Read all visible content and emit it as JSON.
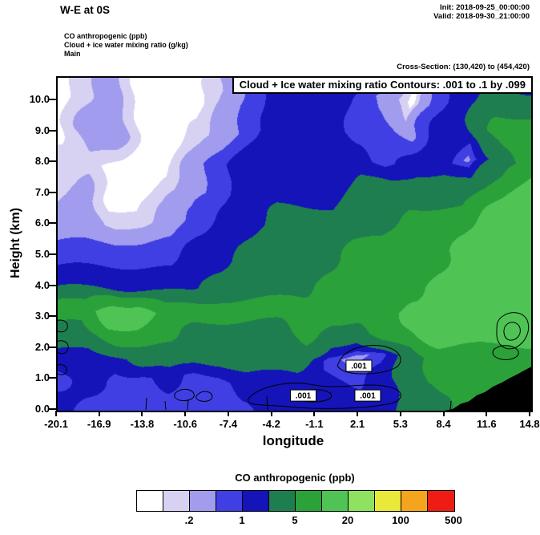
{
  "header": {
    "title": "W-E at 0S",
    "init_label": "Init: 2018-09-25_00:00:00",
    "valid_label": "Valid: 2018-09-30_21:00:00",
    "field_lines": [
      "CO anthropogenic   (ppb)",
      "Cloud + ice water mixing ratio   (g/kg)",
      "Main"
    ],
    "cross_section": "Cross-Section: (130,420) to (454,420)"
  },
  "chart_data": {
    "type": "heatmap",
    "title": "Cloud + Ice water mixing ratio Contours: .001 to .1 by .099",
    "xlabel": "longitude",
    "ylabel": "Height (km)",
    "xlim": [
      -20.1,
      14.8
    ],
    "ylim": [
      0,
      10.75
    ],
    "x_ticks": [
      "-20.1",
      "-16.9",
      "-13.8",
      "-10.6",
      "-7.4",
      "-4.2",
      "-1.1",
      "2.1",
      "5.3",
      "8.4",
      "11.6",
      "14.8"
    ],
    "y_ticks": [
      "0.0",
      "1.0",
      "2.0",
      "3.0",
      "4.0",
      "5.0",
      "6.0",
      "7.0",
      "8.0",
      "9.0",
      "10.0"
    ],
    "levels": [
      0.1,
      0.2,
      0.5,
      1,
      2,
      5,
      10,
      20,
      50,
      100,
      200
    ],
    "colors": [
      "#ffffff",
      "#d8d2f2",
      "#a19cee",
      "#3f3fe3",
      "#1414b8",
      "#1f7e50",
      "#2ba13a",
      "#4fc455",
      "#8fe25f",
      "#e9e93a",
      "#f5a51d",
      "#ee1c12"
    ],
    "fill_field": {
      "name": "CO anthropogenic",
      "units": "ppb",
      "lons": [
        -20.1,
        -18,
        -16,
        -14,
        -12,
        -10,
        -8,
        -6,
        -4,
        -2,
        0,
        2,
        4,
        6,
        8,
        10,
        12.4,
        14.8
      ],
      "heights_km": [
        0,
        1,
        1.8,
        2.5,
        3.2,
        4,
        5,
        6,
        7,
        8,
        9,
        10,
        10.8
      ],
      "values_ppb": [
        [
          1.5,
          0.7,
          0.7,
          0.7,
          0.7,
          0.7,
          0.7,
          0.7,
          1.5,
          1.5,
          1.5,
          1.5,
          1.5,
          3,
          3,
          7,
          7,
          7
        ],
        [
          0.7,
          1.5,
          0.7,
          0.7,
          1.5,
          0.7,
          0.7,
          1.5,
          1.5,
          1.5,
          1.5,
          0.7,
          1.5,
          3,
          7,
          7,
          7,
          7
        ],
        [
          1.5,
          1.5,
          1.5,
          3,
          3,
          3,
          3,
          3,
          3,
          3,
          0.7,
          0.3,
          0.7,
          3,
          7,
          7,
          7,
          7
        ],
        [
          3,
          3,
          7,
          7,
          7,
          3,
          3,
          3,
          3,
          7,
          3,
          3,
          7,
          7,
          15,
          15,
          15,
          15
        ],
        [
          7,
          7,
          15,
          15,
          7,
          7,
          7,
          7,
          7,
          7,
          7,
          7,
          7,
          15,
          15,
          15,
          15,
          15
        ],
        [
          1.5,
          1.5,
          1.5,
          1.5,
          1.5,
          1.5,
          3,
          3,
          3,
          3,
          7,
          7,
          7,
          7,
          15,
          15,
          15,
          15
        ],
        [
          0.7,
          0.7,
          0.7,
          0.7,
          0.7,
          1.5,
          1.5,
          3,
          3,
          3,
          3,
          7,
          7,
          7,
          7,
          15,
          15,
          15
        ],
        [
          0.3,
          0.3,
          0.15,
          0.15,
          0.3,
          0.7,
          1.5,
          1.5,
          3,
          3,
          3,
          3,
          3,
          7,
          7,
          7,
          15,
          15
        ],
        [
          0.15,
          0.3,
          0.05,
          0.05,
          0.15,
          0.3,
          0.7,
          1.5,
          1.5,
          1.5,
          1.5,
          3,
          3,
          3,
          3,
          3,
          7,
          15
        ],
        [
          0.15,
          0.15,
          0.05,
          0.05,
          0.05,
          0.3,
          0.7,
          1.5,
          1.5,
          1.5,
          1.5,
          1.5,
          0.7,
          1.5,
          1.5,
          0.3,
          3,
          7
        ],
        [
          0.05,
          0.3,
          0.3,
          0.05,
          0.05,
          0.15,
          0.3,
          0.7,
          1.5,
          1.5,
          1.5,
          0.7,
          0.7,
          0.3,
          1.5,
          1.5,
          7,
          7
        ],
        [
          0.05,
          0.15,
          0.3,
          0.05,
          0.05,
          0.05,
          0.3,
          0.7,
          1.5,
          1.5,
          1.5,
          0.7,
          0.3,
          0.05,
          0.7,
          1.5,
          3,
          3
        ],
        [
          0.05,
          0.15,
          0.3,
          0.05,
          0.05,
          0.05,
          0.15,
          0.5,
          1.5,
          1.5,
          1.5,
          1.5,
          0.7,
          0.05,
          0.7,
          1.5,
          1.5,
          0.7
        ]
      ]
    },
    "terrain_profile": [
      [
        8.4,
        0
      ],
      [
        9.0,
        0.05
      ],
      [
        9.6,
        0.22
      ],
      [
        10.2,
        0.3
      ],
      [
        10.8,
        0.5
      ],
      [
        11.4,
        0.6
      ],
      [
        12.0,
        0.78
      ],
      [
        12.6,
        0.9
      ],
      [
        13.2,
        1.05
      ],
      [
        13.8,
        1.18
      ],
      [
        14.3,
        1.3
      ],
      [
        14.8,
        1.42
      ]
    ],
    "contour_overlay": {
      "field": "Cloud + Ice water mixing ratio",
      "levels_text": ".001 to .1 by .099",
      "labels": [
        {
          "text": ".001",
          "lon": 2.1,
          "km": 1.45
        },
        {
          "text": ".001",
          "lon": -2.0,
          "km": 0.49
        },
        {
          "text": ".001",
          "lon": 2.75,
          "km": 0.49
        }
      ]
    },
    "colorbar": {
      "title": "CO anthropogenic  (ppb)",
      "tick_labels": [
        ".2",
        "1",
        "5",
        "20",
        "100",
        "500"
      ]
    }
  }
}
